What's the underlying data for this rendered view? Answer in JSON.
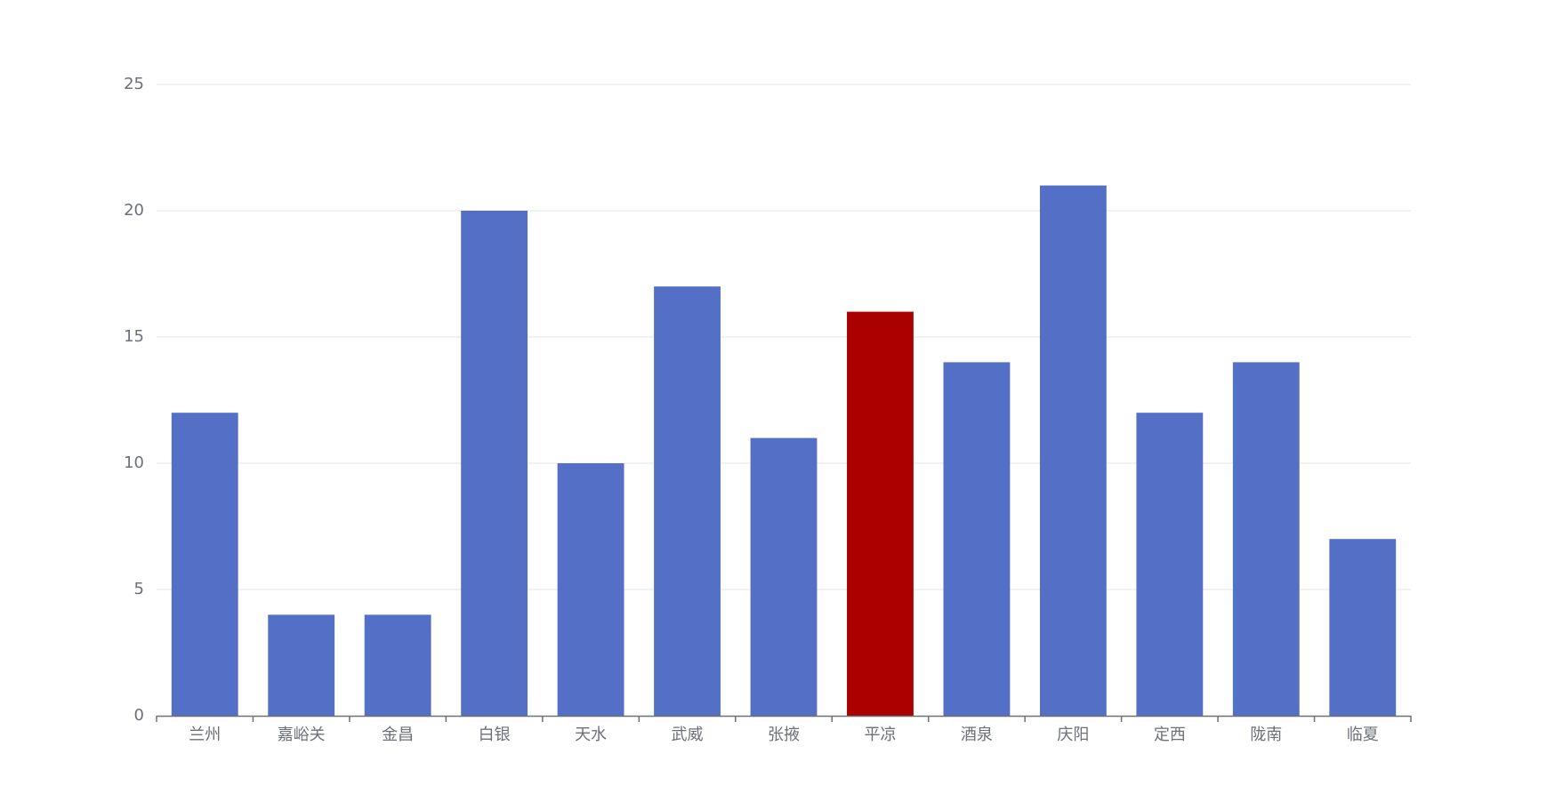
{
  "chart_data": {
    "type": "bar",
    "title": "",
    "xlabel": "",
    "ylabel": "",
    "categories": [
      "兰州",
      "嘉峪关",
      "金昌",
      "白银",
      "天水",
      "武威",
      "张掖",
      "平凉",
      "酒泉",
      "庆阳",
      "定西",
      "陇南",
      "临夏"
    ],
    "values": [
      12,
      4,
      4,
      20,
      10,
      17,
      11,
      16,
      14,
      21,
      12,
      14,
      7
    ],
    "ylim": [
      0,
      25
    ],
    "yticks": [
      0,
      5,
      10,
      15,
      20,
      25
    ],
    "grid": true,
    "bar_color": "#5470c6",
    "highlight_color": "#aa0000",
    "highlight_category": "平凉"
  }
}
